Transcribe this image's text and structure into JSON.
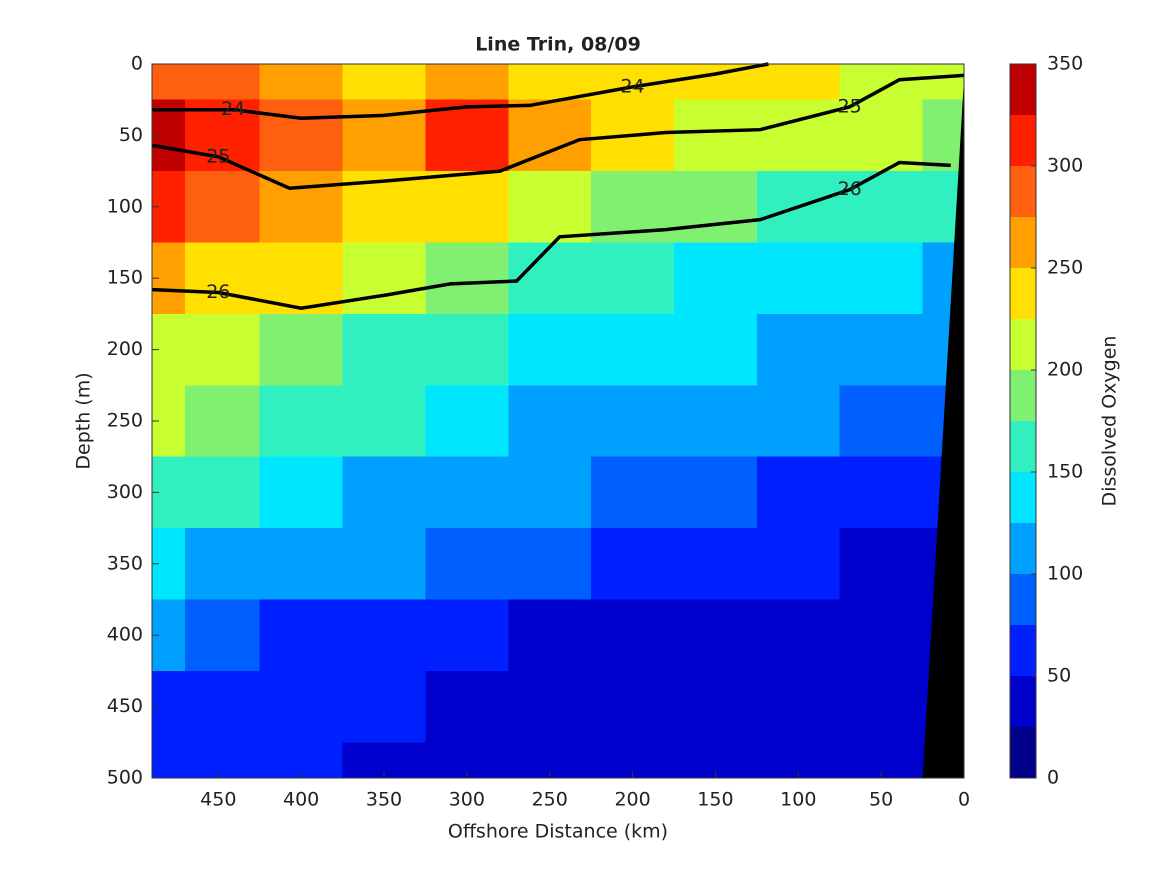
{
  "chart_data": {
    "type": "contour",
    "title": "Line Trin, 08/09",
    "xlabel": "Offshore Distance (km)",
    "ylabel": "Depth (m)",
    "x": [
      490,
      450,
      400,
      350,
      300,
      250,
      200,
      150,
      100,
      50,
      0
    ],
    "depth": [
      0,
      50,
      100,
      150,
      200,
      250,
      300,
      350,
      400,
      450,
      500
    ],
    "values": [
      [
        280,
        280,
        260,
        240,
        260,
        240,
        240,
        240,
        230,
        220,
        210
      ],
      [
        330,
        310,
        290,
        270,
        300,
        250,
        230,
        220,
        210,
        200,
        190
      ],
      [
        300,
        290,
        270,
        240,
        240,
        210,
        190,
        180,
        170,
        160,
        150
      ],
      [
        260,
        240,
        230,
        210,
        190,
        160,
        150,
        140,
        140,
        130,
        120
      ],
      [
        220,
        210,
        190,
        170,
        170,
        140,
        130,
        130,
        120,
        110,
        100
      ],
      [
        210,
        190,
        160,
        150,
        140,
        120,
        110,
        100,
        100,
        90,
        80
      ],
      [
        170,
        160,
        140,
        120,
        110,
        100,
        90,
        80,
        70,
        60,
        50
      ],
      [
        130,
        120,
        110,
        100,
        90,
        80,
        70,
        60,
        50,
        40,
        40
      ],
      [
        100,
        80,
        70,
        60,
        50,
        40,
        40,
        40,
        40,
        40,
        40
      ],
      [
        70,
        60,
        60,
        50,
        40,
        30,
        30,
        30,
        30,
        30,
        30
      ],
      [
        60,
        50,
        50,
        40,
        30,
        30,
        30,
        30,
        30,
        30,
        30
      ]
    ],
    "xlim": [
      490,
      0
    ],
    "ylim": [
      500,
      0
    ],
    "xticks": [
      450,
      400,
      350,
      300,
      250,
      200,
      150,
      100,
      50,
      0
    ],
    "yticks": [
      0,
      50,
      100,
      150,
      200,
      250,
      300,
      350,
      400,
      450,
      500
    ],
    "colorbar": {
      "label": "Dissolved Oxygen",
      "levels": [
        0,
        25,
        50,
        75,
        100,
        125,
        150,
        175,
        200,
        225,
        250,
        275,
        300,
        325,
        350
      ],
      "colors": [
        "#00008b",
        "#0000cd",
        "#0020ff",
        "#0060ff",
        "#00a0ff",
        "#00e6ff",
        "#30f0c0",
        "#80f070",
        "#c8ff30",
        "#ffe000",
        "#ffa000",
        "#ff6010",
        "#ff2000",
        "#c00000"
      ],
      "ticks": [
        0,
        50,
        100,
        150,
        200,
        250,
        300,
        350
      ]
    },
    "contours": [
      {
        "name": "24",
        "color": "#000000",
        "x": [
          490,
          441,
          400,
          350,
          300,
          262,
          200,
          150,
          118
        ],
        "depth": [
          32,
          32,
          38,
          36,
          30,
          29,
          16,
          7,
          0
        ]
      },
      {
        "name": "25",
        "color": "#000000",
        "x": [
          490,
          450,
          407,
          350,
          280,
          232,
          180,
          123,
          69,
          39,
          0
        ],
        "depth": [
          57,
          65,
          87,
          82,
          75,
          53,
          48,
          46,
          30,
          11,
          8
        ]
      },
      {
        "name": "26",
        "color": "#000000",
        "x": [
          490,
          450,
          400,
          350,
          310,
          270,
          244,
          180,
          123,
          69,
          39,
          8
        ],
        "depth": [
          158,
          160,
          171,
          162,
          154,
          152,
          121,
          116,
          109,
          88,
          69,
          71
        ]
      }
    ],
    "seafloor": {
      "x": [
        25,
        0,
        0
      ],
      "depth": [
        500,
        10,
        500
      ],
      "color": "#000000"
    }
  }
}
